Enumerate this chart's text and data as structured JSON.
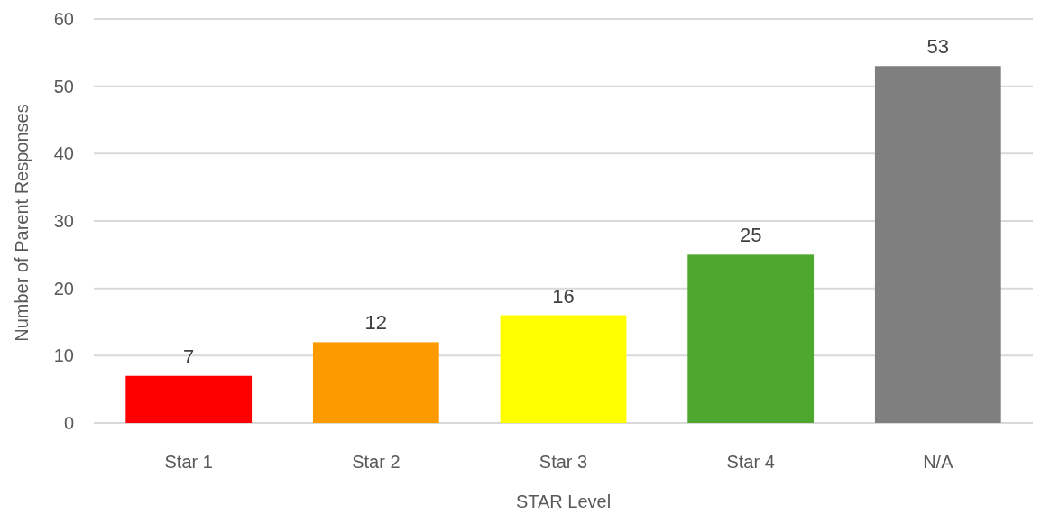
{
  "chart_data": {
    "type": "bar",
    "xlabel": "STAR Level",
    "ylabel": "Number of Parent Responses",
    "categories": [
      "Star 1",
      "Star 2",
      "Star 3",
      "Star 4",
      "N/A"
    ],
    "values": [
      7,
      12,
      16,
      25,
      53
    ],
    "colors": [
      "#ff0000",
      "#fd9a00",
      "#ffff00",
      "#4ea72e",
      "#7f7f7f"
    ],
    "ylim": [
      0,
      60
    ],
    "yticks": [
      0,
      10,
      20,
      30,
      40,
      50,
      60
    ],
    "grid": "y",
    "data_labels": true
  }
}
